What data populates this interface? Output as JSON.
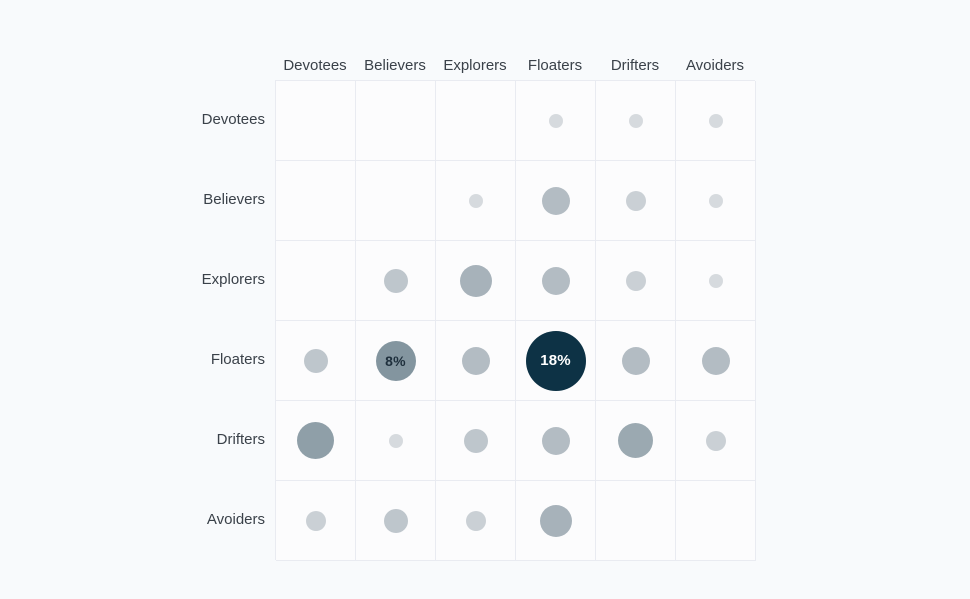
{
  "page": {
    "background_color": "#f8fafc",
    "cell_background_color": "#fcfcfd",
    "grid_line_color": "#e9ebf1",
    "axis_label_color": "#3a4149"
  },
  "chart_data": {
    "type": "heatmap",
    "subtype": "bubble-matrix",
    "title": "",
    "columns": [
      "Devotees",
      "Believers",
      "Explorers",
      "Floaters",
      "Drifters",
      "Avoiders"
    ],
    "rows": [
      "Devotees",
      "Believers",
      "Explorers",
      "Floaters",
      "Drifters",
      "Avoiders"
    ],
    "unit": "%",
    "values": [
      [
        null,
        null,
        null,
        1,
        1,
        1
      ],
      [
        null,
        null,
        1,
        4,
        2,
        1
      ],
      [
        null,
        3,
        5,
        4,
        2,
        1
      ],
      [
        3,
        8,
        4,
        18,
        4,
        4
      ],
      [
        7,
        1,
        3,
        4,
        6,
        2
      ],
      [
        2,
        3,
        2,
        5,
        null,
        null
      ]
    ],
    "labels": [
      [
        null,
        null,
        null,
        null,
        null,
        null
      ],
      [
        null,
        null,
        null,
        null,
        null,
        null
      ],
      [
        null,
        null,
        null,
        null,
        null,
        null
      ],
      [
        null,
        "8%",
        null,
        "18%",
        null,
        null
      ],
      [
        null,
        null,
        null,
        null,
        null,
        null
      ],
      [
        null,
        null,
        null,
        null,
        null,
        null
      ]
    ],
    "legend_position": "none",
    "grid": true,
    "size_encoding": "bubble area proportional to value; diameter = 14.14 * sqrt(value) px",
    "color_scale": {
      "min_value": 1,
      "min_color": "#d6dade",
      "max_value": 18,
      "max_color": "#0d3245"
    },
    "bubble_label_text_dark": "#1e2f3c",
    "bubble_label_text_light": "#ffffff"
  }
}
